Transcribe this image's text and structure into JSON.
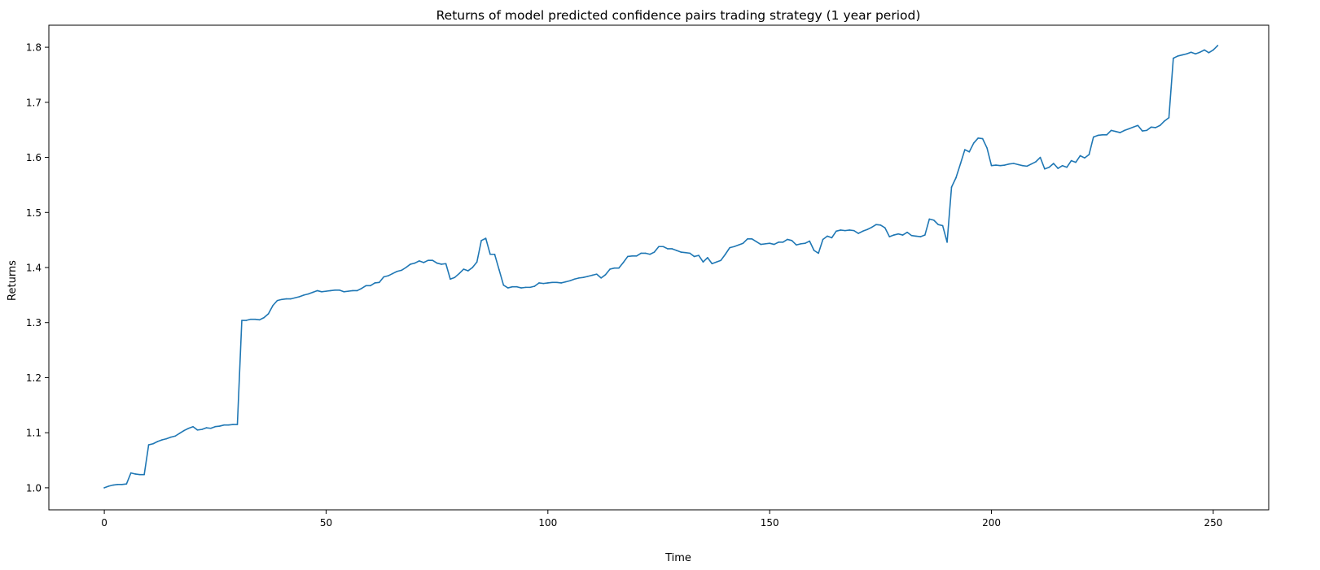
{
  "chart_data": {
    "type": "line",
    "title": "Returns of model predicted confidence pairs trading strategy (1 year period)",
    "xlabel": "Time",
    "ylabel": "Returns",
    "xlim": [
      -12.5,
      262.5
    ],
    "ylim": [
      0.96,
      1.84
    ],
    "xticks": [
      0,
      50,
      100,
      150,
      200,
      250
    ],
    "yticks": [
      1.0,
      1.1,
      1.2,
      1.3,
      1.4,
      1.5,
      1.6,
      1.7,
      1.8
    ],
    "ytick_labels": [
      "1.0",
      "1.1",
      "1.2",
      "1.3",
      "1.4",
      "1.5",
      "1.6",
      "1.7",
      "1.8"
    ],
    "grid": false,
    "line_color": "#1f77b4",
    "series": [
      {
        "values": [
          1.0,
          1.003,
          1.005,
          1.006,
          1.006,
          1.007,
          1.027,
          1.025,
          1.024,
          1.024,
          1.078,
          1.08,
          1.084,
          1.087,
          1.089,
          1.092,
          1.094,
          1.099,
          1.104,
          1.108,
          1.111,
          1.105,
          1.106,
          1.109,
          1.108,
          1.111,
          1.112,
          1.114,
          1.114,
          1.115,
          1.115,
          1.304,
          1.304,
          1.306,
          1.306,
          1.305,
          1.309,
          1.316,
          1.331,
          1.34,
          1.342,
          1.343,
          1.343,
          1.345,
          1.347,
          1.35,
          1.352,
          1.355,
          1.358,
          1.356,
          1.357,
          1.358,
          1.359,
          1.359,
          1.356,
          1.357,
          1.358,
          1.358,
          1.362,
          1.367,
          1.367,
          1.372,
          1.373,
          1.383,
          1.385,
          1.389,
          1.393,
          1.395,
          1.4,
          1.406,
          1.408,
          1.412,
          1.409,
          1.413,
          1.413,
          1.408,
          1.406,
          1.407,
          1.379,
          1.382,
          1.389,
          1.397,
          1.394,
          1.4,
          1.41,
          1.449,
          1.453,
          1.424,
          1.424,
          1.396,
          1.368,
          1.363,
          1.365,
          1.365,
          1.363,
          1.364,
          1.364,
          1.366,
          1.372,
          1.371,
          1.372,
          1.373,
          1.373,
          1.372,
          1.374,
          1.376,
          1.379,
          1.381,
          1.382,
          1.384,
          1.386,
          1.388,
          1.381,
          1.387,
          1.397,
          1.399,
          1.399,
          1.409,
          1.42,
          1.421,
          1.421,
          1.426,
          1.426,
          1.424,
          1.428,
          1.438,
          1.438,
          1.434,
          1.434,
          1.431,
          1.428,
          1.427,
          1.426,
          1.42,
          1.422,
          1.41,
          1.418,
          1.407,
          1.41,
          1.413,
          1.424,
          1.436,
          1.438,
          1.441,
          1.444,
          1.452,
          1.452,
          1.447,
          1.442,
          1.443,
          1.444,
          1.442,
          1.446,
          1.446,
          1.451,
          1.449,
          1.441,
          1.443,
          1.444,
          1.448,
          1.431,
          1.426,
          1.451,
          1.457,
          1.454,
          1.466,
          1.468,
          1.467,
          1.468,
          1.467,
          1.462,
          1.466,
          1.469,
          1.473,
          1.478,
          1.477,
          1.472,
          1.456,
          1.459,
          1.461,
          1.459,
          1.464,
          1.458,
          1.457,
          1.456,
          1.459,
          1.488,
          1.486,
          1.478,
          1.476,
          1.446,
          1.546,
          1.563,
          1.588,
          1.614,
          1.61,
          1.626,
          1.635,
          1.634,
          1.617,
          1.585,
          1.586,
          1.585,
          1.586,
          1.588,
          1.589,
          1.587,
          1.585,
          1.584,
          1.588,
          1.592,
          1.6,
          1.579,
          1.582,
          1.589,
          1.58,
          1.585,
          1.582,
          1.594,
          1.591,
          1.603,
          1.599,
          1.605,
          1.637,
          1.64,
          1.641,
          1.641,
          1.649,
          1.647,
          1.645,
          1.649,
          1.652,
          1.655,
          1.658,
          1.648,
          1.649,
          1.655,
          1.654,
          1.658,
          1.666,
          1.672,
          1.78,
          1.784,
          1.786,
          1.788,
          1.791,
          1.788,
          1.791,
          1.795,
          1.79,
          1.795,
          1.803
        ]
      }
    ]
  }
}
